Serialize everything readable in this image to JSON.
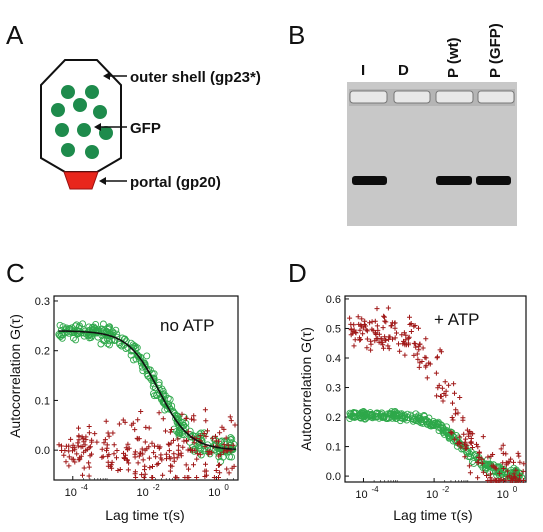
{
  "figure": {
    "panels": {
      "A": "A",
      "B": "B",
      "C": "C",
      "D": "D"
    },
    "diagram": {
      "outer_shell": "outer shell (gp23*)",
      "gfp": "GFP",
      "portal": "portal (gp20)",
      "colors": {
        "shell_fill": "#ffffff",
        "gfp": "#1e8b4c",
        "portal": "#e8261c"
      }
    },
    "gel": {
      "lanes": [
        "I",
        "D",
        "P (wt)",
        "P (GFP)"
      ],
      "background": "#c8c8c8"
    }
  },
  "chart_data": [
    {
      "type": "scatter",
      "panel": "C",
      "annotation": "no ATP",
      "xlabel": "Lag time τ(s)",
      "ylabel": "Autocorrelation G(τ)",
      "xscale": "log",
      "xlim": [
        3e-05,
        4
      ],
      "ylim": [
        -0.06,
        0.31
      ],
      "xticks": [
        {
          "value": 0.0001,
          "label": "10",
          "exp": "-4"
        },
        {
          "value": 0.01,
          "label": "10",
          "exp": "-2"
        },
        {
          "value": 1,
          "label": "10",
          "exp": "0"
        }
      ],
      "yticks": [
        0.0,
        0.1,
        0.2,
        0.3
      ],
      "yticklabels": [
        "0.0",
        "0.1",
        "0.2",
        "0.3"
      ],
      "series": [
        {
          "marker": "circle",
          "color": "#2ea84a",
          "model": "decay",
          "G0": 0.24,
          "tau": 0.025,
          "range": [
            4e-05,
            3.5
          ],
          "noise": 0.012
        },
        {
          "marker": "plus",
          "color": "#a01818",
          "model": "flat",
          "G0": 0.0,
          "range": [
            4e-05,
            3.5
          ],
          "noise": 0.035
        },
        {
          "marker": "line",
          "color": "#111111",
          "model": "fit",
          "G0": 0.24,
          "tau": 0.025,
          "range": [
            4e-05,
            3.5
          ]
        }
      ]
    },
    {
      "type": "scatter",
      "panel": "D",
      "annotation": "+ ATP",
      "xlabel": "Lag time τ(s)",
      "ylabel": "Autocorrelation G(τ)",
      "xscale": "log",
      "xlim": [
        3e-05,
        4
      ],
      "ylim": [
        -0.02,
        0.61
      ],
      "xticks": [
        {
          "value": 0.0001,
          "label": "10",
          "exp": "-4"
        },
        {
          "value": 0.01,
          "label": "10",
          "exp": "-2"
        },
        {
          "value": 1,
          "label": "10",
          "exp": "0"
        }
      ],
      "yticks": [
        0.0,
        0.1,
        0.2,
        0.3,
        0.4,
        0.5,
        0.6
      ],
      "yticklabels": [
        "0.0",
        "0.1",
        "0.2",
        "0.3",
        "0.4",
        "0.5",
        "0.6"
      ],
      "series": [
        {
          "marker": "circle",
          "color": "#2ea84a",
          "model": "decay",
          "G0": 0.205,
          "tau": 0.06,
          "range": [
            4e-05,
            3.5
          ],
          "noise": 0.01
        },
        {
          "marker": "plus",
          "color": "#a01818",
          "model": "decay",
          "G0": 0.5,
          "tau": 0.025,
          "range": [
            4e-05,
            3.5
          ],
          "noise": 0.05
        }
      ]
    }
  ]
}
